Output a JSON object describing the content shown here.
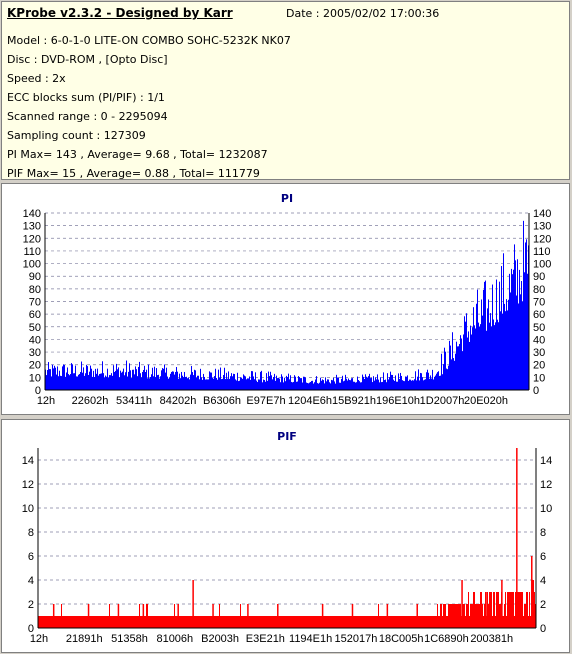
{
  "header": {
    "title": "KProbe v2.3.2 - Designed by Karr",
    "date": "Date : 2005/02/02 17:00:36"
  },
  "info_lines": [
    "Model : 6-0-1-0 LITE-ON COMBO SOHC-5232K NK07",
    "Disc : DVD-ROM ,  [Opto Disc]",
    "Speed : 2x",
    "ECC blocks sum (PI/PIF) : 1/1",
    "Scanned range : 0 - 2295094",
    "Sampling count : 127309",
    "PI Max= 143 , Average= 9.68 , Total= 1232087",
    "PIF Max= 15 , Average= 0.88 , Total= 111779"
  ],
  "chart_data": [
    {
      "type": "area",
      "title": "PI",
      "color": "#0000ff",
      "ylim": [
        0,
        140
      ],
      "yticks": [
        0,
        10,
        20,
        30,
        40,
        50,
        60,
        70,
        80,
        90,
        100,
        110,
        120,
        130,
        140
      ],
      "xtick_labels": [
        "12h",
        "22602h",
        "53411h",
        "84202h",
        "B6306h",
        "E97E7h",
        "1204E6h",
        "15B921h",
        "196E10h",
        "1D2007h",
        "20E020h"
      ],
      "grid": true,
      "x_position": [
        0.0,
        0.05,
        0.1,
        0.15,
        0.2,
        0.25,
        0.3,
        0.35,
        0.4,
        0.45,
        0.5,
        0.55,
        0.6,
        0.65,
        0.7,
        0.75,
        0.8,
        0.82,
        0.84,
        0.86,
        0.88,
        0.9,
        0.92,
        0.94,
        0.96,
        0.98,
        1.0
      ],
      "max_envelope": [
        22,
        23,
        22,
        24,
        22,
        20,
        19,
        18,
        17,
        15,
        13,
        12,
        12,
        12,
        14,
        16,
        20,
        33,
        45,
        60,
        75,
        82,
        92,
        105,
        115,
        130,
        140
      ],
      "base_level": [
        10,
        10,
        10,
        10,
        9,
        9,
        8,
        8,
        7,
        6,
        6,
        5,
        5,
        6,
        6,
        7,
        8,
        12,
        20,
        30,
        38,
        42,
        48,
        55,
        60,
        68,
        75
      ]
    },
    {
      "type": "bar",
      "title": "PIF",
      "color": "#ff0000",
      "ylim": [
        0,
        15
      ],
      "yticks": [
        0,
        2,
        4,
        6,
        8,
        10,
        12,
        14
      ],
      "xtick_labels": [
        "12h",
        "21891h",
        "51358h",
        "81006h",
        "B2003h",
        "E3E21h",
        "1194E1h",
        "152017h",
        "18C005h",
        "1C6890h",
        "200381h"
      ],
      "grid": true,
      "baseline": 1,
      "x_position": [
        0.0,
        0.8,
        0.85,
        0.9,
        0.95,
        0.98,
        1.0
      ],
      "base_level": [
        1,
        1,
        1.3,
        1.8,
        2,
        2.3,
        3
      ],
      "spikes": [
        [
          0.03,
          2
        ],
        [
          0.1,
          2
        ],
        [
          0.16,
          2
        ],
        [
          0.21,
          2
        ],
        [
          0.28,
          2
        ],
        [
          0.31,
          4
        ],
        [
          0.35,
          2
        ],
        [
          0.42,
          2
        ],
        [
          0.48,
          2
        ],
        [
          0.57,
          2
        ],
        [
          0.63,
          2
        ],
        [
          0.7,
          2
        ],
        [
          0.76,
          2
        ],
        [
          0.85,
          4
        ],
        [
          0.9,
          3
        ],
        [
          0.93,
          4
        ],
        [
          0.96,
          15
        ],
        [
          0.99,
          6
        ]
      ]
    }
  ]
}
